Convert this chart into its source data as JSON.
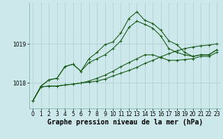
{
  "title": "Graphe pression niveau de la mer (hPa)",
  "x": [
    0,
    1,
    2,
    3,
    4,
    5,
    6,
    7,
    8,
    9,
    10,
    11,
    12,
    13,
    14,
    15,
    16,
    17,
    18,
    19,
    20,
    21,
    22,
    23
  ],
  "line_bottom": [
    1017.55,
    1017.9,
    1017.92,
    1017.92,
    1017.95,
    1017.97,
    1018.0,
    1018.02,
    1018.05,
    1018.1,
    1018.18,
    1018.25,
    1018.32,
    1018.4,
    1018.5,
    1018.58,
    1018.67,
    1018.75,
    1018.82,
    1018.88,
    1018.92,
    1018.95,
    1018.97,
    1019.0
  ],
  "line_mid_low": [
    1017.55,
    1017.9,
    1017.92,
    1017.92,
    1017.95,
    1017.97,
    1018.0,
    1018.05,
    1018.12,
    1018.2,
    1018.3,
    1018.42,
    1018.52,
    1018.62,
    1018.72,
    1018.72,
    1018.65,
    1018.58,
    1018.58,
    1018.6,
    1018.62,
    1018.68,
    1018.68,
    1018.78
  ],
  "line_mid_high": [
    1017.55,
    1017.92,
    1018.08,
    1018.12,
    1018.42,
    1018.48,
    1018.3,
    1018.52,
    1018.62,
    1018.72,
    1018.88,
    1019.08,
    1019.42,
    1019.58,
    1019.5,
    1019.4,
    1019.2,
    1018.88,
    1018.78,
    1018.72,
    1018.68,
    1018.72,
    1018.72,
    1018.85
  ],
  "line_top": [
    1017.55,
    1017.92,
    1018.08,
    1018.12,
    1018.42,
    1018.48,
    1018.3,
    1018.62,
    1018.78,
    1018.98,
    1019.05,
    1019.28,
    1019.65,
    1019.82,
    1019.6,
    1019.52,
    1019.35,
    1019.08,
    1018.98,
    1018.78,
    1018.68,
    1018.72,
    1018.72,
    1018.85
  ],
  "ylim": [
    1017.35,
    1020.05
  ],
  "yticks": [
    1018,
    1019
  ],
  "bg_color": "#cce8ea",
  "grid_color": "#aacccc",
  "line_color": "#1a5c1a",
  "markersize": 3,
  "linewidth": 0.8,
  "title_fontsize": 7,
  "tick_fontsize": 5.5
}
